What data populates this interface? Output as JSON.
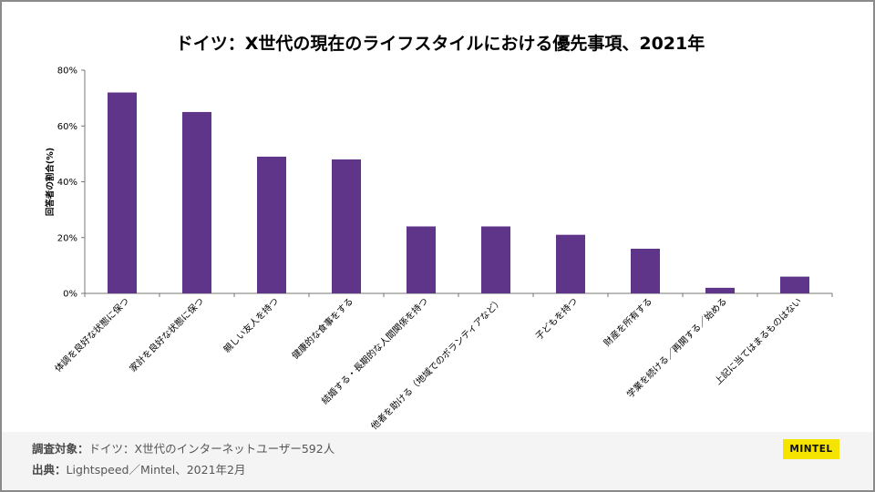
{
  "chart_data": {
    "type": "bar",
    "title": "ドイツ：X世代の現在のライフスタイルにおける優先事項、2021年",
    "ylabel": "回答者の割合(%)",
    "xlabel": "",
    "ylim": [
      0,
      80
    ],
    "yticks": [
      0,
      20,
      40,
      60,
      80
    ],
    "ytick_labels": [
      "0%",
      "20%",
      "40%",
      "60%",
      "80%"
    ],
    "categories": [
      "体調を良好な状態に保つ",
      "家計を良好な状態に保つ",
      "親しい友人を持つ",
      "健康的な食事をする",
      "結婚する・長期的な人間関係を持つ",
      "他者を助ける（地域でのボランティアなど）",
      "子どもを持つ",
      "財産を所有する",
      "学業を続ける／再開する／始める",
      "上記に当てはまるものはない"
    ],
    "values": [
      72,
      65,
      49,
      48,
      24,
      24,
      21,
      16,
      2,
      6
    ],
    "bar_color": "#5f3589",
    "grid": false,
    "legend": "none"
  },
  "footer": {
    "survey_label": "調査対象：",
    "survey_value": "ドイツ：X世代のインターネットユーザー592人",
    "source_label": "出典：",
    "source_value": "Lightspeed／Mintel、2021年2月"
  },
  "logo": {
    "text": "MINTEL",
    "color": "#f5e400"
  }
}
